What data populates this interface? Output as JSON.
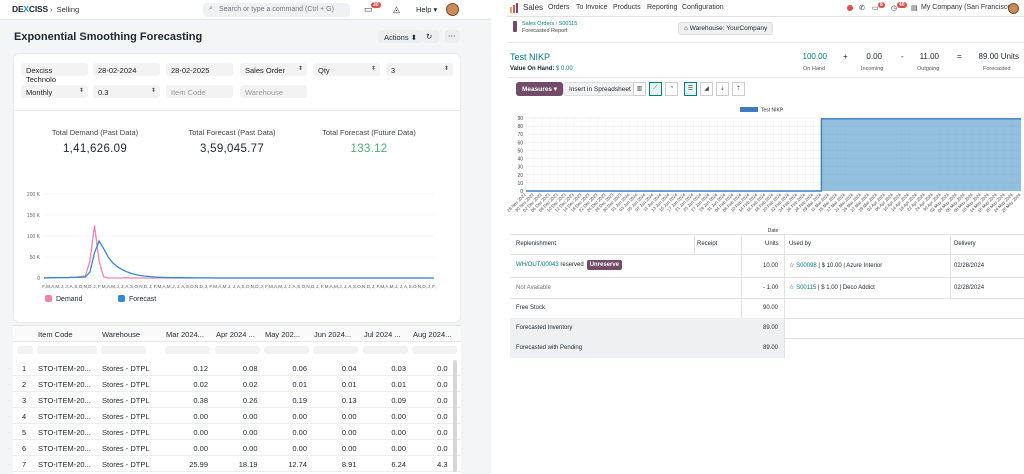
{
  "left": {
    "brand": {
      "pre": "DE",
      "x": "X",
      "post": "CISS"
    },
    "breadcrumb": "Selling",
    "search_placeholder": "Search or type a command (Ctrl + G)",
    "notif_count": "30",
    "help": "Help",
    "title": "Exponential Smoothing Forecasting",
    "actions_label": "Actions",
    "filters": {
      "company": "Dexciss Technolo",
      "from": "28-02-2024",
      "to": "28-02-2025",
      "doc": "Sales Order",
      "based_on": "Qty",
      "periods": "3",
      "freq": "Monthly",
      "alpha": "0.3",
      "item_ph": "Item Code",
      "wh_ph": "Warehouse"
    },
    "stats": [
      {
        "label": "Total Demand (Past Data)",
        "value": "1,41,626.09"
      },
      {
        "label": "Total Forecast (Past Data)",
        "value": "3,59,045.77"
      },
      {
        "label": "Total Forecast (Future Data)",
        "value": "133.12"
      }
    ],
    "chart_data": {
      "type": "line",
      "y_ticks": [
        "200 K",
        "150 K",
        "100 K",
        "50 K",
        "0"
      ],
      "ylim": [
        0,
        200000
      ],
      "x_tick_labels": [
        "F",
        "M",
        "A",
        "M",
        "J",
        "J",
        "A",
        "S",
        "O",
        "N",
        "D",
        "J",
        "F",
        "M",
        "A",
        "M",
        "J",
        "J",
        "A",
        "S",
        "O",
        "N",
        "D",
        "J",
        "F",
        "M",
        "A",
        "M",
        "J",
        "J",
        "A",
        "S",
        "O",
        "N",
        "D",
        "J",
        "F",
        "M",
        "A",
        "M",
        "J",
        "J",
        "A",
        "S",
        "O",
        "N",
        "D",
        "J",
        "F",
        "M",
        "A",
        "M",
        "J",
        "J",
        "A",
        "S",
        "O",
        "N",
        "D",
        "J",
        "F",
        "M",
        "A",
        "M",
        "J",
        "J",
        "A",
        "S",
        "O",
        "N",
        "D",
        "J",
        "F",
        "M",
        "A",
        "M",
        "J",
        "J",
        "A",
        "S",
        "O",
        "N",
        "D",
        "J",
        "F"
      ],
      "series": [
        {
          "name": "Demand",
          "color": "#f683ae",
          "values": [
            0,
            1000,
            1000,
            1000,
            1000,
            1000,
            2000,
            2000,
            3000,
            5000,
            40000,
            125000,
            40000,
            3000,
            0,
            0,
            0,
            0,
            1000,
            0,
            0,
            0,
            0,
            0,
            0,
            0,
            0,
            0,
            0,
            0,
            0,
            0,
            0,
            0,
            0,
            0,
            0,
            0,
            0,
            0,
            0,
            0,
            0,
            0,
            0,
            0,
            0,
            0,
            0,
            0,
            0,
            0,
            0,
            0,
            0,
            0,
            0,
            0,
            0,
            0,
            0,
            0,
            0,
            0,
            0,
            0,
            0,
            0,
            0,
            0,
            0,
            0,
            0,
            0,
            0,
            0,
            0,
            0,
            0,
            0,
            0,
            0,
            0,
            0,
            0,
            0
          ]
        },
        {
          "name": "Forecast",
          "color": "#318ad8",
          "values": [
            0,
            500,
            800,
            900,
            1000,
            1000,
            1200,
            1500,
            1800,
            2500,
            14000,
            60000,
            88000,
            70000,
            50000,
            36000,
            27000,
            20000,
            15000,
            11000,
            8000,
            6000,
            4500,
            3500,
            2500,
            2000,
            1500,
            1200,
            1000,
            800,
            600,
            500,
            400,
            300,
            300,
            200,
            200,
            100,
            100,
            100,
            0,
            0,
            0,
            0,
            0,
            0,
            0,
            0,
            0,
            0,
            0,
            0,
            0,
            0,
            0,
            0,
            0,
            0,
            0,
            0,
            0,
            0,
            0,
            0,
            0,
            0,
            0,
            0,
            0,
            0,
            0,
            0,
            0,
            0,
            0,
            0,
            0,
            0,
            0,
            0,
            0,
            0,
            0,
            0,
            0,
            0
          ]
        }
      ]
    },
    "table": {
      "headers": [
        "Item Code",
        "Warehouse",
        "Mar 2024...",
        "Apr 2024 ...",
        "May 202...",
        "Jun 2024...",
        "Jul 2024 ...",
        "Aug 2024..."
      ],
      "rows": [
        {
          "n": "1",
          "item": "STO-ITEM-20...",
          "wh": "Stores - DTPL",
          "v": [
            "0.12",
            "0.08",
            "0.06",
            "0.04",
            "0.03",
            "0.0"
          ]
        },
        {
          "n": "2",
          "item": "STO-ITEM-20...",
          "wh": "Stores - DTPL",
          "v": [
            "0.02",
            "0.02",
            "0.01",
            "0.01",
            "0.01",
            "0.0"
          ]
        },
        {
          "n": "3",
          "item": "STO-ITEM-20...",
          "wh": "Stores - DTPL",
          "v": [
            "0.38",
            "0.26",
            "0.19",
            "0.13",
            "0.09",
            "0.0"
          ]
        },
        {
          "n": "4",
          "item": "STO-ITEM-20...",
          "wh": "Stores - DTPL",
          "v": [
            "0.00",
            "0.00",
            "0.00",
            "0.00",
            "0.00",
            "0.0"
          ]
        },
        {
          "n": "5",
          "item": "STO-ITEM-20...",
          "wh": "Stores - DTPL",
          "v": [
            "0.00",
            "0.00",
            "0.00",
            "0.00",
            "0.00",
            "0.0"
          ]
        },
        {
          "n": "6",
          "item": "STO-ITEM-20...",
          "wh": "Stores - DTPL",
          "v": [
            "0.00",
            "0.00",
            "0.00",
            "0.00",
            "0.00",
            "0.0"
          ]
        },
        {
          "n": "7",
          "item": "STO-ITEM-20...",
          "wh": "Stores - DTPL",
          "v": [
            "25.99",
            "18.19",
            "12.74",
            "8.91",
            "6.24",
            "4.3"
          ]
        }
      ]
    }
  },
  "right": {
    "app": "Sales",
    "nav": [
      "Orders",
      "To Invoice",
      "Products",
      "Reporting",
      "Configuration"
    ],
    "badges": {
      "chat": "8",
      "activity": "40"
    },
    "company": "My Company (San Francisco)",
    "crumb_parent": "Sales Orders",
    "crumb_sep": "/",
    "crumb_ref": "S00115",
    "crumb_sub": "Forecasted Report",
    "warehouse": "Warehouse: YourCompany",
    "product": "Test NIKP",
    "voh_label": "Value On Hand:",
    "voh_value": "$ 0.00",
    "kpis": [
      {
        "v": "100.00",
        "l": "On Hand"
      },
      {
        "v": "0.00",
        "l": "Incoming"
      },
      {
        "v": "11.00",
        "l": "Outgoing"
      },
      {
        "v": "89.00 Units",
        "l": "Forecasted"
      }
    ],
    "ops": [
      "+",
      "-",
      "="
    ],
    "measures": "Measures",
    "spreadsheet": "Insert in Spreadsheet",
    "chart_data": {
      "type": "area",
      "title": "",
      "series": [
        {
          "name": "Test NIKP",
          "color": "#6fa9d4"
        }
      ],
      "ylim": [
        0,
        90
      ],
      "y_ticks": [
        "90",
        "80",
        "70",
        "60",
        "50",
        "40",
        "30",
        "20",
        "10",
        "0"
      ],
      "xlabel": "Date",
      "x_dates": [
        "28 Nov 2023",
        "30 Nov 2023",
        "02 Dec 2023",
        "06 Dec 2023",
        "08 Dec 2023",
        "10 Dec 2023",
        "12 Dec 2023",
        "14 Dec 2023",
        "18 Dec 2023",
        "22 Dec 2023",
        "26 Dec 2023",
        "28 Dec 2023",
        "30 Dec 2023",
        "01 Jan 2024",
        "03 Jan 2024",
        "05 Jan 2024",
        "07 Jan 2024",
        "11 Jan 2024",
        "13 Jan 2024",
        "15 Jan 2024",
        "17 Jan 2024",
        "21 Jan 2024",
        "25 Jan 2024",
        "27 Jan 2024",
        "29 Jan 2024",
        "31 Jan 2024",
        "04 Feb 2024",
        "08 Feb 2024",
        "10 Feb 2024",
        "14 Feb 2024",
        "16 Feb 2024",
        "18 Feb 2024",
        "20 Feb 2024",
        "22 Feb 2024",
        "24 Feb 2024",
        "26 Feb 2024",
        "28 Feb 2024",
        "09 Mar 2024",
        "11 Mar 2024",
        "15 Mar 2024",
        "17 Mar 2024",
        "21 Mar 2024",
        "25 Mar 2024",
        "27 Mar 2024",
        "29 Mar 2024",
        "02 Apr 2024",
        "06 Apr 2024",
        "10 Apr 2024",
        "14 Apr 2024",
        "18 Apr 2024",
        "22 Apr 2024",
        "24 Apr 2024",
        "30 Apr 2024",
        "02 May 2024",
        "04 May 2024",
        "06 May 2024",
        "08 May 2024",
        "10 May 2024",
        "14 May 2024",
        "16 May 2024",
        "20 May 2024",
        "24 May 2024",
        "26 May 2024"
      ],
      "step_index": 37,
      "before": 0,
      "after": 89
    },
    "rep": {
      "headers": [
        "Replenishment",
        "Receipt",
        "Units",
        "Used by",
        "Delivery"
      ],
      "rows": [
        {
          "rep": "WH/OUT/00043",
          "rep_suffix": "reserved",
          "btn": "Unreserve",
          "units": "10.00",
          "used_ref": "S00098",
          "used_rest": " | $ 10.00 | Azure Interior",
          "delivery": "02/28/2024"
        },
        {
          "rep": "Not Available",
          "units": "- 1.00",
          "used_ref": "S00115",
          "used_rest": " | $ 1.00 | Deco Addict",
          "delivery": "02/28/2024"
        },
        {
          "rep": "Free Stock",
          "units": "90.00"
        },
        {
          "rep": "Forecasted Inventory",
          "units": "89.00"
        },
        {
          "rep": "Forecasted with Pending",
          "units": "89.00"
        }
      ]
    }
  }
}
